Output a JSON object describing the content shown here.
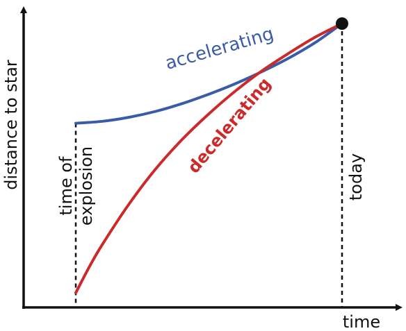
{
  "chart_data": {
    "type": "line",
    "xlabel": "time",
    "ylabel": "distance to star",
    "grid": false,
    "legend": "none",
    "marker_labels": {
      "explosion_label_line1": "time of",
      "explosion_label_line2": "explosion",
      "today_label": "today"
    },
    "series": [
      {
        "name": "accelerating",
        "color": "#3a5ca8",
        "x": [
          0,
          0.1,
          0.2,
          0.3,
          0.4,
          0.5,
          0.6,
          0.7,
          0.8,
          0.9,
          1.0
        ],
        "y": [
          0.63,
          0.637,
          0.652,
          0.674,
          0.703,
          0.738,
          0.777,
          0.822,
          0.872,
          0.93,
          1.0
        ]
      },
      {
        "name": "decelerating",
        "color": "#cc2a2a",
        "x": [
          0,
          0.05,
          0.1,
          0.2,
          0.3,
          0.4,
          0.5,
          0.6,
          0.7,
          0.8,
          0.9,
          1.0
        ],
        "y": [
          0.0,
          0.095,
          0.18,
          0.33,
          0.46,
          0.57,
          0.665,
          0.75,
          0.825,
          0.89,
          0.95,
          1.0
        ]
      }
    ],
    "endpoint_color": "#111111"
  }
}
